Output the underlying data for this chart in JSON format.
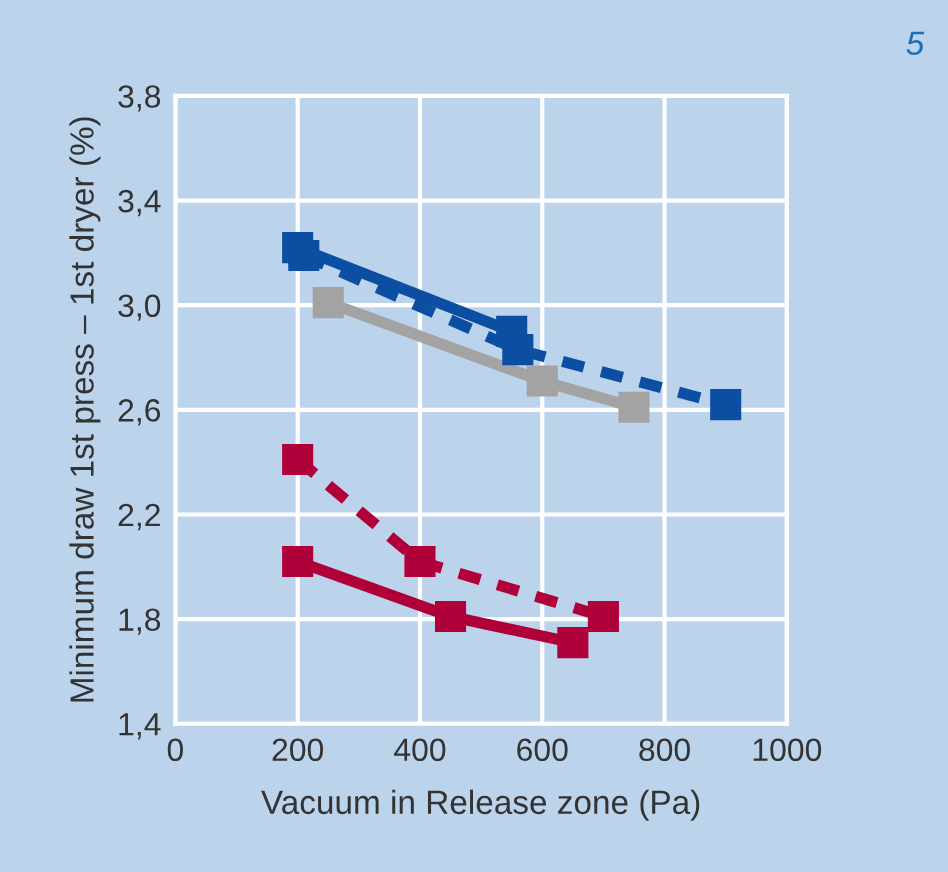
{
  "chart_data": {
    "type": "line",
    "xlabel": "Vacuum in Release zone (Pa)",
    "ylabel": "Minimum draw 1st press – 1st dryer (%)",
    "annotations": [
      "5"
    ],
    "xlim": [
      0,
      1000
    ],
    "xticks": [
      0,
      200,
      400,
      600,
      800,
      1000
    ],
    "ylim": [
      1.4,
      3.8
    ],
    "yticks": [
      {
        "value": 1.4,
        "label": "1,4"
      },
      {
        "value": 1.8,
        "label": "1,8"
      },
      {
        "value": 2.2,
        "label": "2,2"
      },
      {
        "value": 2.6,
        "label": "2,6"
      },
      {
        "value": 3.0,
        "label": "3,0"
      },
      {
        "value": 3.4,
        "label": "3,4"
      },
      {
        "value": 3.8,
        "label": "3,8"
      }
    ],
    "grid": true,
    "legend": false,
    "marker": "square",
    "series": [
      {
        "color": "#0b4ea2",
        "line_style": "solid",
        "x": [
          200,
          550
        ],
        "values": [
          3.22,
          2.9
        ]
      },
      {
        "color": "#0b4ea2",
        "line_style": "dashed",
        "x": [
          210,
          560,
          900
        ],
        "values": [
          3.19,
          2.83,
          2.62
        ]
      },
      {
        "color": "#a3a3a3",
        "line_style": "solid",
        "x": [
          250,
          600,
          750
        ],
        "values": [
          3.01,
          2.71,
          2.61
        ]
      },
      {
        "color": "#b0003a",
        "line_style": "dashed",
        "x": [
          200,
          400,
          700
        ],
        "values": [
          2.41,
          2.02,
          1.81
        ]
      },
      {
        "color": "#b0003a",
        "line_style": "solid",
        "x": [
          200,
          450,
          650
        ],
        "values": [
          2.02,
          1.81,
          1.71
        ]
      }
    ]
  }
}
